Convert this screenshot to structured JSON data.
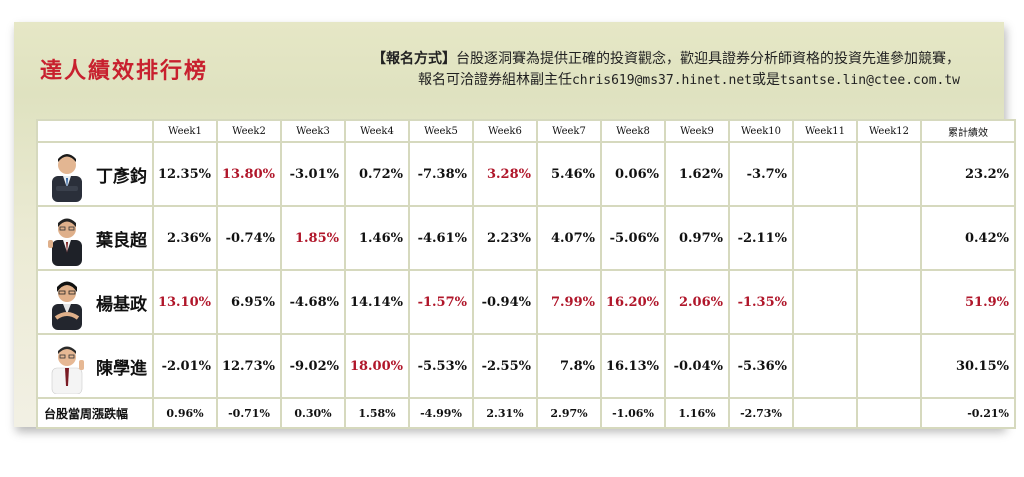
{
  "title": "達人績效排行榜",
  "registration": {
    "tag": "【報名方式】",
    "line1": "台股逐洞賽為提供正確的投資觀念，歡迎具證券分析師資格的投資先進參加競賽，",
    "line2_prefix": "報名可洽證券組林副主任",
    "email1": "chris619@ms37.hinet.net",
    "joiner": "或是",
    "email2": "tsantse.lin@ctee.com.tw"
  },
  "table": {
    "columns": [
      "Week1",
      "Week2",
      "Week3",
      "Week4",
      "Week5",
      "Week6",
      "Week7",
      "Week8",
      "Week9",
      "Week10",
      "Week11",
      "Week12",
      "累計績效"
    ],
    "rows": [
      {
        "name": "丁彥鈞",
        "avatar": "person-1",
        "values": [
          "12.35%",
          "13.80%",
          "-3.01%",
          "0.72%",
          "-7.38%",
          "3.28%",
          "5.46%",
          "0.06%",
          "1.62%",
          "-3.7%",
          "",
          "",
          "23.2%"
        ],
        "highlight": [
          false,
          true,
          false,
          false,
          false,
          true,
          false,
          false,
          false,
          false,
          false,
          false,
          false
        ]
      },
      {
        "name": "葉良超",
        "avatar": "person-2",
        "values": [
          "2.36%",
          "-0.74%",
          "1.85%",
          "1.46%",
          "-4.61%",
          "2.23%",
          "4.07%",
          "-5.06%",
          "0.97%",
          "-2.11%",
          "",
          "",
          "0.42%"
        ],
        "highlight": [
          false,
          false,
          true,
          false,
          false,
          false,
          false,
          false,
          false,
          false,
          false,
          false,
          false
        ]
      },
      {
        "name": "楊基政",
        "avatar": "person-3",
        "values": [
          "13.10%",
          "6.95%",
          "-4.68%",
          "14.14%",
          "-1.57%",
          "-0.94%",
          "7.99%",
          "16.20%",
          "2.06%",
          "-1.35%",
          "",
          "",
          "51.9%"
        ],
        "highlight": [
          true,
          false,
          false,
          false,
          true,
          false,
          true,
          true,
          true,
          true,
          false,
          false,
          true
        ]
      },
      {
        "name": "陳學進",
        "avatar": "person-4",
        "values": [
          "-2.01%",
          "12.73%",
          "-9.02%",
          "18.00%",
          "-5.53%",
          "-2.55%",
          "7.8%",
          "16.13%",
          "-0.04%",
          "-5.36%",
          "",
          "",
          "30.15%"
        ],
        "highlight": [
          false,
          false,
          false,
          true,
          false,
          false,
          false,
          false,
          false,
          false,
          false,
          false,
          false
        ]
      }
    ],
    "footer": {
      "label": "台股當周漲跌幅",
      "values": [
        "0.96%",
        "-0.71%",
        "0.30%",
        "1.58%",
        "-4.99%",
        "2.31%",
        "2.97%",
        "-1.06%",
        "1.16%",
        "-2.73%",
        "",
        "",
        "-0.21%"
      ]
    }
  },
  "colors": {
    "title": "#c8202e",
    "highlight": "#b0162a",
    "grid": "#d6d9be"
  }
}
